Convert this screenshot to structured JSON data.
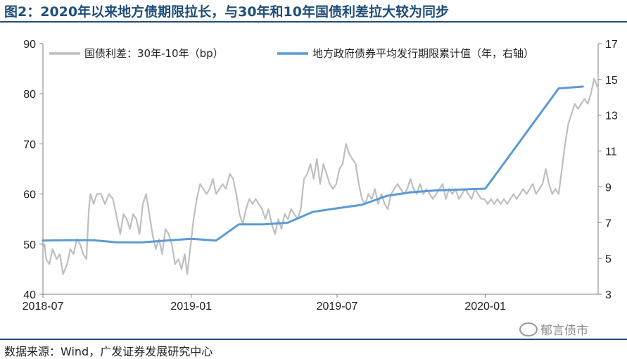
{
  "title": "图2：2020年以来地方债期限拉长，与30年和10年国债利差拉大较为同步",
  "source": "数据来源：Wind，广发证券发展研究中心",
  "watermark": "郁言债市",
  "colors": {
    "title": "#1F4E79",
    "spread": "#BFBFBF",
    "maturity": "#5B9BD5"
  },
  "chart_data": {
    "type": "line",
    "x_ticks": [
      "2018-07",
      "2019-01",
      "2019-07",
      "2020-01"
    ],
    "x_range": [
      "2018-07-01",
      "2020-05-20"
    ],
    "y_left": {
      "range": [
        40,
        90
      ],
      "ticks": [
        40,
        50,
        60,
        70,
        80,
        90
      ]
    },
    "y_right": {
      "range": [
        3,
        17
      ],
      "ticks": [
        3,
        5,
        7,
        9,
        11,
        13,
        15,
        17
      ]
    },
    "legend_position": "top",
    "grid": false,
    "series": [
      {
        "name": "国债利差：30年-10年（bp）",
        "axis": "left",
        "color": "#BFBFBF",
        "points": [
          [
            "2018-07-01",
            49
          ],
          [
            "2018-07-03",
            50
          ],
          [
            "2018-07-05",
            47
          ],
          [
            "2018-07-09",
            46
          ],
          [
            "2018-07-13",
            49
          ],
          [
            "2018-07-18",
            47
          ],
          [
            "2018-07-22",
            48
          ],
          [
            "2018-07-26",
            44
          ],
          [
            "2018-07-31",
            46
          ],
          [
            "2018-08-04",
            49
          ],
          [
            "2018-08-08",
            48
          ],
          [
            "2018-08-12",
            51
          ],
          [
            "2018-08-16",
            50
          ],
          [
            "2018-08-20",
            48
          ],
          [
            "2018-08-24",
            47
          ],
          [
            "2018-08-27",
            57
          ],
          [
            "2018-08-29",
            60
          ],
          [
            "2018-09-02",
            58
          ],
          [
            "2018-09-06",
            60
          ],
          [
            "2018-09-11",
            60
          ],
          [
            "2018-09-16",
            58
          ],
          [
            "2018-09-21",
            60
          ],
          [
            "2018-09-26",
            59
          ],
          [
            "2018-10-01",
            55
          ],
          [
            "2018-10-05",
            52
          ],
          [
            "2018-10-09",
            56
          ],
          [
            "2018-10-13",
            55
          ],
          [
            "2018-10-17",
            53
          ],
          [
            "2018-10-21",
            56
          ],
          [
            "2018-10-25",
            55
          ],
          [
            "2018-10-29",
            52
          ],
          [
            "2018-11-02",
            58
          ],
          [
            "2018-11-06",
            60
          ],
          [
            "2018-11-10",
            56
          ],
          [
            "2018-11-14",
            52
          ],
          [
            "2018-11-18",
            49
          ],
          [
            "2018-11-22",
            51
          ],
          [
            "2018-11-26",
            48
          ],
          [
            "2018-11-30",
            53
          ],
          [
            "2018-12-04",
            52
          ],
          [
            "2018-12-08",
            50
          ],
          [
            "2018-12-12",
            46
          ],
          [
            "2018-12-16",
            47
          ],
          [
            "2018-12-20",
            45
          ],
          [
            "2018-12-24",
            48
          ],
          [
            "2018-12-27",
            44
          ],
          [
            "2018-12-30",
            48
          ],
          [
            "2019-01-04",
            55
          ],
          [
            "2019-01-08",
            59
          ],
          [
            "2019-01-12",
            62
          ],
          [
            "2019-01-16",
            61
          ],
          [
            "2019-01-20",
            60
          ],
          [
            "2019-01-24",
            61
          ],
          [
            "2019-01-28",
            63
          ],
          [
            "2019-02-01",
            60
          ],
          [
            "2019-02-05",
            61
          ],
          [
            "2019-02-09",
            62
          ],
          [
            "2019-02-13",
            61
          ],
          [
            "2019-02-18",
            64
          ],
          [
            "2019-02-22",
            63
          ],
          [
            "2019-02-26",
            60
          ],
          [
            "2019-03-02",
            56
          ],
          [
            "2019-03-06",
            54
          ],
          [
            "2019-03-10",
            57
          ],
          [
            "2019-03-14",
            59
          ],
          [
            "2019-03-18",
            58
          ],
          [
            "2019-03-22",
            59
          ],
          [
            "2019-03-26",
            58
          ],
          [
            "2019-03-30",
            57
          ],
          [
            "2019-04-03",
            55
          ],
          [
            "2019-04-07",
            57
          ],
          [
            "2019-04-11",
            54
          ],
          [
            "2019-04-15",
            52
          ],
          [
            "2019-04-19",
            55
          ],
          [
            "2019-04-23",
            53
          ],
          [
            "2019-04-27",
            56
          ],
          [
            "2019-05-01",
            55
          ],
          [
            "2019-05-05",
            57
          ],
          [
            "2019-05-09",
            56
          ],
          [
            "2019-05-13",
            55
          ],
          [
            "2019-05-17",
            57
          ],
          [
            "2019-05-21",
            63
          ],
          [
            "2019-05-25",
            64
          ],
          [
            "2019-05-29",
            66
          ],
          [
            "2019-06-02",
            63
          ],
          [
            "2019-06-06",
            67
          ],
          [
            "2019-06-10",
            62
          ],
          [
            "2019-06-14",
            66
          ],
          [
            "2019-06-18",
            64
          ],
          [
            "2019-06-22",
            62
          ],
          [
            "2019-06-26",
            61
          ],
          [
            "2019-06-30",
            62
          ],
          [
            "2019-07-04",
            65
          ],
          [
            "2019-07-08",
            66
          ],
          [
            "2019-07-12",
            70
          ],
          [
            "2019-07-16",
            68
          ],
          [
            "2019-07-20",
            67
          ],
          [
            "2019-07-24",
            66
          ],
          [
            "2019-07-28",
            62
          ],
          [
            "2019-08-01",
            59
          ],
          [
            "2019-08-05",
            58
          ],
          [
            "2019-08-09",
            60
          ],
          [
            "2019-08-13",
            59
          ],
          [
            "2019-08-17",
            61
          ],
          [
            "2019-08-21",
            58
          ],
          [
            "2019-08-25",
            60
          ],
          [
            "2019-08-29",
            58
          ],
          [
            "2019-09-02",
            57
          ],
          [
            "2019-09-06",
            60
          ],
          [
            "2019-09-10",
            61
          ],
          [
            "2019-09-14",
            62
          ],
          [
            "2019-09-18",
            61
          ],
          [
            "2019-09-22",
            60
          ],
          [
            "2019-09-26",
            61
          ],
          [
            "2019-09-30",
            63
          ],
          [
            "2019-10-04",
            61
          ],
          [
            "2019-10-08",
            60
          ],
          [
            "2019-10-12",
            62
          ],
          [
            "2019-10-16",
            60
          ],
          [
            "2019-10-20",
            61
          ],
          [
            "2019-10-24",
            60
          ],
          [
            "2019-10-28",
            59
          ],
          [
            "2019-11-01",
            60
          ],
          [
            "2019-11-05",
            61
          ],
          [
            "2019-11-09",
            62
          ],
          [
            "2019-11-13",
            59
          ],
          [
            "2019-11-17",
            61
          ],
          [
            "2019-11-21",
            60
          ],
          [
            "2019-11-25",
            61
          ],
          [
            "2019-11-29",
            59
          ],
          [
            "2019-12-03",
            60
          ],
          [
            "2019-12-07",
            61
          ],
          [
            "2019-12-11",
            60
          ],
          [
            "2019-12-15",
            59
          ],
          [
            "2019-12-19",
            61
          ],
          [
            "2019-12-23",
            60
          ],
          [
            "2019-12-27",
            59
          ],
          [
            "2019-12-31",
            59
          ],
          [
            "2020-01-04",
            58
          ],
          [
            "2020-01-08",
            59
          ],
          [
            "2020-01-12",
            58
          ],
          [
            "2020-01-16",
            59
          ],
          [
            "2020-01-20",
            58
          ],
          [
            "2020-01-24",
            59
          ],
          [
            "2020-01-28",
            58
          ],
          [
            "2020-02-01",
            59
          ],
          [
            "2020-02-05",
            60
          ],
          [
            "2020-02-09",
            59
          ],
          [
            "2020-02-13",
            60
          ],
          [
            "2020-02-17",
            61
          ],
          [
            "2020-02-21",
            60
          ],
          [
            "2020-02-25",
            61
          ],
          [
            "2020-02-29",
            62
          ],
          [
            "2020-03-04",
            60
          ],
          [
            "2020-03-08",
            61
          ],
          [
            "2020-03-12",
            62
          ],
          [
            "2020-03-16",
            65
          ],
          [
            "2020-03-20",
            62
          ],
          [
            "2020-03-24",
            60
          ],
          [
            "2020-03-28",
            61
          ],
          [
            "2020-04-01",
            60
          ],
          [
            "2020-04-05",
            65
          ],
          [
            "2020-04-09",
            70
          ],
          [
            "2020-04-13",
            74
          ],
          [
            "2020-04-17",
            76
          ],
          [
            "2020-04-21",
            78
          ],
          [
            "2020-04-25",
            77
          ],
          [
            "2020-04-29",
            78
          ],
          [
            "2020-05-03",
            79
          ],
          [
            "2020-05-07",
            78
          ],
          [
            "2020-05-11",
            80
          ],
          [
            "2020-05-15",
            83
          ],
          [
            "2020-05-20",
            81
          ]
        ]
      },
      {
        "name": "地方政府债券平均发行期限累计值（年，右轴）",
        "axis": "right",
        "color": "#5B9BD5",
        "points": [
          [
            "2018-07-01",
            6.0
          ],
          [
            "2018-08-01",
            6.02
          ],
          [
            "2018-09-01",
            6.02
          ],
          [
            "2018-10-01",
            5.9
          ],
          [
            "2018-11-01",
            5.9
          ],
          [
            "2018-12-01",
            6.0
          ],
          [
            "2019-01-01",
            6.1
          ],
          [
            "2019-02-01",
            6.0
          ],
          [
            "2019-03-01",
            6.9
          ],
          [
            "2019-04-01",
            6.9
          ],
          [
            "2019-05-01",
            7.0
          ],
          [
            "2019-06-01",
            7.6
          ],
          [
            "2019-07-01",
            7.8
          ],
          [
            "2019-08-01",
            8.0
          ],
          [
            "2019-09-01",
            8.5
          ],
          [
            "2019-10-01",
            8.7
          ],
          [
            "2019-11-01",
            8.8
          ],
          [
            "2019-12-01",
            8.85
          ],
          [
            "2020-01-01",
            8.9
          ],
          [
            "2020-04-01",
            14.5
          ],
          [
            "2020-05-01",
            14.6
          ]
        ]
      }
    ]
  }
}
